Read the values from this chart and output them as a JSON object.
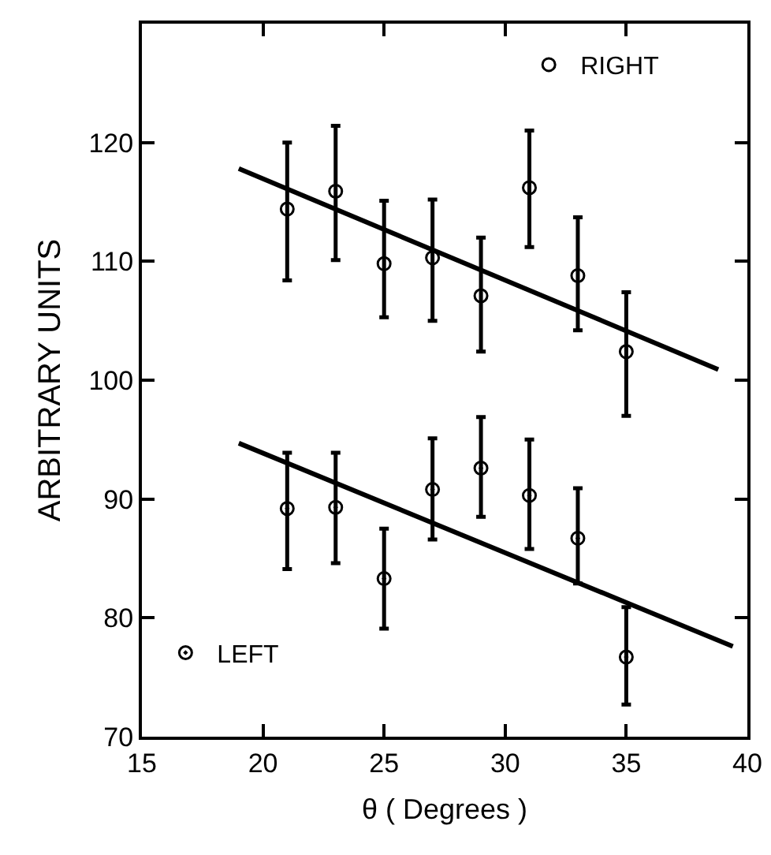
{
  "chart_data": {
    "type": "scatter",
    "xlabel": "θ ( Degrees )",
    "ylabel": "ARBITRARY UNITS",
    "xlim": [
      15,
      40
    ],
    "xticks": [
      15,
      20,
      25,
      30,
      35,
      40
    ],
    "ylim": [
      70,
      130
    ],
    "yticks": [
      70,
      80,
      90,
      100,
      110,
      120
    ],
    "grid": false,
    "legend": "top right",
    "marker": "circle",
    "series": [
      {
        "name": "RIGHT",
        "color": "#000000",
        "x": [
          21,
          23,
          25,
          27,
          29,
          31,
          33,
          35
        ],
        "values": [
          114.4,
          115.9,
          109.8,
          110.3,
          107.1,
          116.2,
          108.8,
          102.4
        ],
        "errors": [
          [
            108.4,
            120
          ],
          [
            110.1,
            121.4
          ],
          [
            105.3,
            115.1
          ],
          [
            105,
            115.2
          ],
          [
            102.4,
            112
          ],
          [
            111.2,
            121
          ],
          [
            104.2,
            113.7
          ],
          [
            97,
            107.4
          ]
        ]
      },
      {
        "name": "LEFT",
        "color": "#000000",
        "x": [
          21,
          23,
          25,
          27,
          29,
          31,
          33,
          35
        ],
        "values": [
          89.2,
          89.3,
          83.3,
          90.8,
          92.6,
          90.3,
          86.7,
          76.7
        ],
        "errors": [
          [
            84.1,
            93.9
          ],
          [
            84.6,
            93.9
          ],
          [
            79.1,
            87.5
          ],
          [
            86.6,
            95.1
          ],
          [
            88.5,
            96.9
          ],
          [
            85.8,
            95
          ],
          [
            82.9,
            90.9
          ],
          [
            72.7,
            80.9
          ]
        ]
      },
      {
        "type": "line",
        "marker": "none",
        "color": "#000000",
        "x": [
          19,
          38.8
        ],
        "values": [
          117.8,
          100.9
        ]
      },
      {
        "type": "line",
        "marker": "none",
        "color": "#000000",
        "x": [
          19,
          39.4
        ],
        "values": [
          94.7,
          77.6
        ]
      }
    ]
  }
}
